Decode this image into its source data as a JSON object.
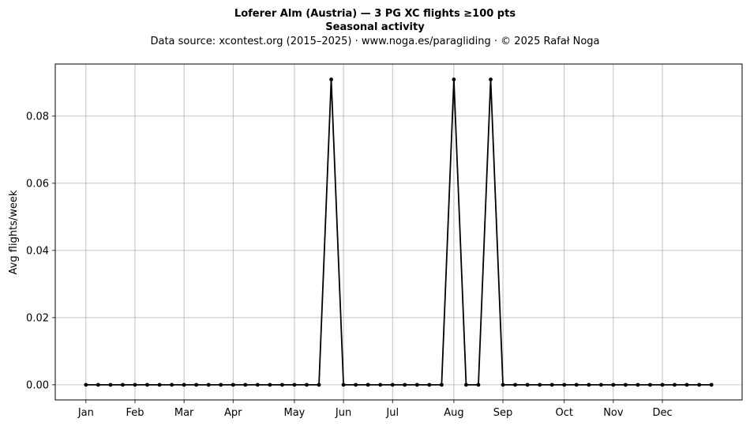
{
  "chart_data": {
    "type": "line",
    "title_line1": "Loferer Alm (Austria)  —  3 PG XC flights ≥100 pts",
    "title_line2": "Seasonal activity",
    "subtitle": "Data source: xcontest.org (2015–2025)  ·  www.noga.es/paragliding  ·  © 2025 Rafał Noga",
    "xlabel": "",
    "ylabel": "Avg flights/week",
    "x_ticks": [
      {
        "label": "Jan",
        "week": 1
      },
      {
        "label": "Feb",
        "week": 5
      },
      {
        "label": "Mar",
        "week": 9
      },
      {
        "label": "Apr",
        "week": 13
      },
      {
        "label": "May",
        "week": 18
      },
      {
        "label": "Jun",
        "week": 22
      },
      {
        "label": "Jul",
        "week": 26
      },
      {
        "label": "Aug",
        "week": 31
      },
      {
        "label": "Sep",
        "week": 35
      },
      {
        "label": "Oct",
        "week": 40
      },
      {
        "label": "Nov",
        "week": 44
      },
      {
        "label": "Dec",
        "week": 48
      }
    ],
    "y_ticks": [
      0.0,
      0.02,
      0.04,
      0.06,
      0.08
    ],
    "y_tick_labels": [
      "0.00",
      "0.02",
      "0.04",
      "0.06",
      "0.08"
    ],
    "xlim": [
      -1.5,
      54.5
    ],
    "ylim": [
      -0.0045,
      0.0955
    ],
    "grid": true,
    "series": [
      {
        "color": "#000000",
        "x": [
          1,
          2,
          3,
          4,
          5,
          6,
          7,
          8,
          9,
          10,
          11,
          12,
          13,
          14,
          15,
          16,
          17,
          18,
          19,
          20,
          21,
          22,
          23,
          24,
          25,
          26,
          27,
          28,
          29,
          30,
          31,
          32,
          33,
          34,
          35,
          36,
          37,
          38,
          39,
          40,
          41,
          42,
          43,
          44,
          45,
          46,
          47,
          48,
          49,
          50,
          51,
          52
        ],
        "values": [
          0,
          0,
          0,
          0,
          0,
          0,
          0,
          0,
          0,
          0,
          0,
          0,
          0,
          0,
          0,
          0,
          0,
          0,
          0,
          0,
          0.0909,
          0,
          0,
          0,
          0,
          0,
          0,
          0,
          0,
          0,
          0.0909,
          0,
          0,
          0.0909,
          0,
          0,
          0,
          0,
          0,
          0,
          0,
          0,
          0,
          0,
          0,
          0,
          0,
          0,
          0,
          0,
          0,
          0
        ]
      }
    ]
  }
}
